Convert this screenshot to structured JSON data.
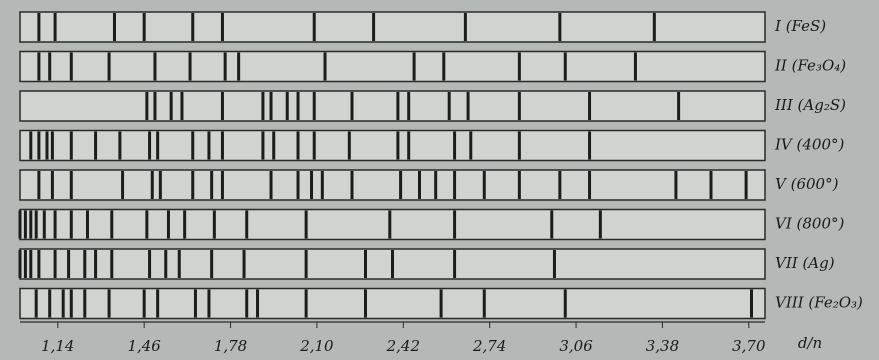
{
  "chart_data": {
    "type": "diffraction",
    "x_label": "d/n",
    "xlim": [
      1.0,
      3.76
    ],
    "xticks": [
      {
        "value": 1.14,
        "label": "1,14"
      },
      {
        "value": 1.46,
        "label": "1,46"
      },
      {
        "value": 1.78,
        "label": "1,78"
      },
      {
        "value": 2.1,
        "label": "2,10"
      },
      {
        "value": 2.42,
        "label": "2,42"
      },
      {
        "value": 2.74,
        "label": "2,74"
      },
      {
        "value": 3.06,
        "label": "3,06"
      },
      {
        "value": 3.38,
        "label": "3,38"
      },
      {
        "value": 3.7,
        "label": "3,70"
      }
    ],
    "color": "#1c1c1c",
    "series": [
      {
        "name": "I (FeS)",
        "values": [
          1.07,
          1.13,
          1.35,
          1.46,
          1.64,
          1.75,
          2.09,
          2.31,
          2.65,
          3.0,
          3.35
        ]
      },
      {
        "name": "II (Fe₃O₄)",
        "values": [
          1.07,
          1.11,
          1.19,
          1.33,
          1.5,
          1.63,
          1.76,
          1.81,
          2.13,
          2.46,
          2.57,
          2.85,
          3.02,
          3.28
        ]
      },
      {
        "name": "III (Ag₂S)",
        "values": [
          1.47,
          1.5,
          1.56,
          1.6,
          1.75,
          1.9,
          1.93,
          1.99,
          2.03,
          2.09,
          2.23,
          2.4,
          2.44,
          2.59,
          2.66,
          2.85,
          3.11,
          3.44
        ]
      },
      {
        "name": "IV (400°)",
        "values": [
          1.04,
          1.07,
          1.1,
          1.12,
          1.19,
          1.28,
          1.37,
          1.48,
          1.51,
          1.64,
          1.7,
          1.75,
          1.9,
          1.94,
          2.03,
          2.09,
          2.22,
          2.4,
          2.44,
          2.61,
          2.67,
          2.85,
          3.11
        ]
      },
      {
        "name": "V (600°)",
        "values": [
          1.07,
          1.12,
          1.19,
          1.38,
          1.49,
          1.52,
          1.64,
          1.71,
          1.75,
          1.93,
          2.03,
          2.08,
          2.12,
          2.23,
          2.41,
          2.48,
          2.54,
          2.61,
          2.72,
          2.85,
          3.0,
          3.11,
          3.43,
          3.56,
          3.69
        ]
      },
      {
        "name": "VI (800°)",
        "values": [
          1.0,
          1.02,
          1.04,
          1.06,
          1.09,
          1.13,
          1.19,
          1.25,
          1.34,
          1.47,
          1.55,
          1.61,
          1.72,
          1.84,
          2.06,
          2.37,
          2.61,
          2.97,
          3.15
        ]
      },
      {
        "name": "VII (Ag)",
        "values": [
          1.0,
          1.02,
          1.04,
          1.07,
          1.13,
          1.18,
          1.24,
          1.28,
          1.34,
          1.48,
          1.54,
          1.59,
          1.71,
          1.83,
          2.06,
          2.28,
          2.38,
          2.61,
          2.98
        ]
      },
      {
        "name": "VIII (Fe₂O₃)",
        "values": [
          1.06,
          1.11,
          1.16,
          1.19,
          1.24,
          1.33,
          1.46,
          1.51,
          1.65,
          1.7,
          1.84,
          1.88,
          2.06,
          2.28,
          2.56,
          2.72,
          3.02,
          3.71
        ]
      }
    ]
  }
}
